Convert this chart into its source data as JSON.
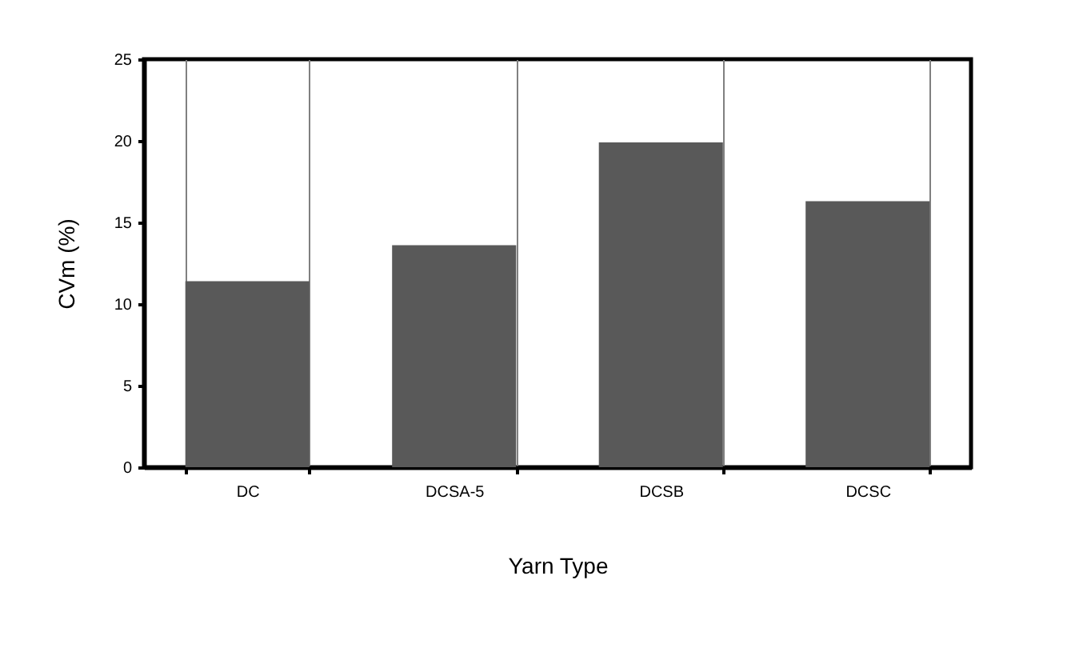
{
  "chart_data": {
    "type": "bar",
    "xlabel": "Yarn Type",
    "ylabel": "CVm (%)",
    "categories": [
      "DC",
      "DCSA-5",
      "DCSB",
      "DCSC"
    ],
    "values": [
      11.4,
      13.6,
      19.9,
      16.3
    ],
    "color": "#595959",
    "ylim": [
      0,
      25
    ],
    "yticks": [
      0,
      5,
      10,
      15,
      20,
      25
    ],
    "grid": "x"
  }
}
